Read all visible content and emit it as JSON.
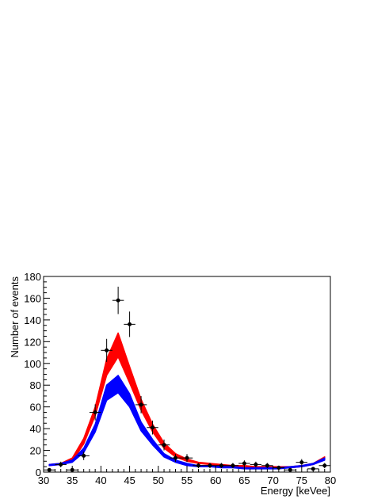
{
  "chart_data": {
    "type": "line",
    "title": "",
    "xlabel": "Energy [keVee]",
    "ylabel": "Number of events",
    "xlim": [
      30,
      80
    ],
    "ylim": [
      0,
      180
    ],
    "xticks": [
      30,
      35,
      40,
      45,
      50,
      55,
      60,
      65,
      70,
      75,
      80
    ],
    "yticks": [
      0,
      20,
      40,
      60,
      80,
      100,
      120,
      140,
      160,
      180
    ],
    "grid": false,
    "legend": "none",
    "bands": [
      {
        "color": "#ff0000",
        "x": [
          31,
          33,
          35,
          37,
          39,
          41,
          43,
          45,
          47,
          49,
          51,
          53,
          55,
          57,
          59,
          61,
          63,
          65,
          67,
          69,
          71,
          73,
          75,
          77,
          79
        ],
        "lower": [
          6,
          7,
          10,
          26,
          52,
          89,
          106,
          82,
          57,
          37,
          22,
          14,
          10,
          8,
          7,
          6,
          5,
          5,
          4,
          4,
          4,
          4,
          5,
          7,
          12
        ],
        "upper": [
          7,
          8,
          13,
          31,
          60,
          104,
          128,
          97,
          67,
          44,
          27,
          17,
          12,
          9,
          8,
          7,
          6,
          6,
          5,
          5,
          5,
          5,
          6,
          8,
          14
        ]
      },
      {
        "color": "#0000ff",
        "x": [
          31,
          33,
          35,
          37,
          39,
          41,
          43,
          45,
          47,
          49,
          51,
          53,
          55,
          57,
          59,
          61,
          63,
          65,
          67,
          69,
          71,
          73,
          75,
          77,
          79
        ],
        "lower": [
          6,
          7,
          9,
          18,
          37,
          66,
          73,
          60,
          38,
          25,
          14,
          9,
          6,
          5,
          5,
          4,
          4,
          3,
          3,
          3,
          3,
          4,
          5,
          7,
          11
        ],
        "upper": [
          7,
          8,
          11,
          22,
          44,
          80,
          89,
          72,
          46,
          30,
          17,
          11,
          8,
          6,
          6,
          5,
          5,
          4,
          4,
          4,
          4,
          5,
          6,
          8,
          13
        ]
      }
    ],
    "points": {
      "color": "#000000",
      "x": [
        31,
        33,
        35,
        37,
        39,
        41,
        43,
        45,
        47,
        49,
        51,
        53,
        55,
        57,
        59,
        61,
        63,
        65,
        67,
        69,
        71,
        73,
        75,
        77,
        79
      ],
      "y": [
        2,
        7,
        2,
        15,
        55,
        112,
        158,
        136,
        62,
        41,
        25,
        13,
        13,
        6,
        6,
        6,
        6,
        8,
        7,
        6,
        4,
        2,
        9,
        3,
        6
      ],
      "yerr": [
        1.4,
        2.6,
        1.4,
        3.9,
        7.4,
        10.6,
        12.6,
        11.7,
        7.9,
        6.4,
        5,
        3.6,
        3.6,
        2.4,
        2.4,
        2.4,
        2.4,
        2.8,
        2.6,
        2.4,
        2,
        1.4,
        3,
        1.7,
        2.4
      ],
      "xerr": 1
    }
  }
}
